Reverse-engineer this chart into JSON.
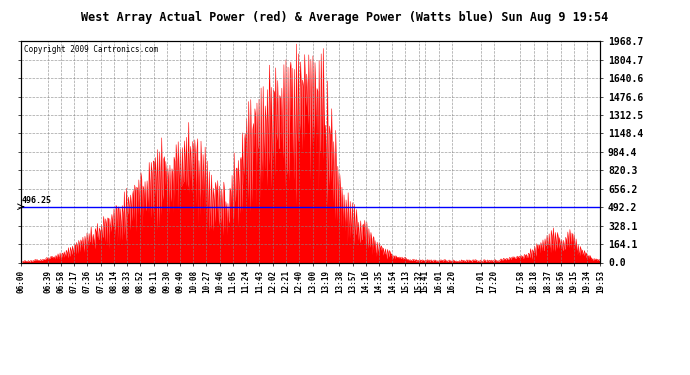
{
  "title": "West Array Actual Power (red) & Average Power (Watts blue) Sun Aug 9 19:54",
  "copyright": "Copyright 2009 Cartronics.com",
  "avg_power": 496.25,
  "y_max": 1968.7,
  "y_min": 0.0,
  "y_ticks": [
    0.0,
    164.1,
    328.1,
    492.2,
    656.2,
    820.3,
    984.4,
    1148.4,
    1312.5,
    1476.6,
    1640.6,
    1804.7,
    1968.7
  ],
  "background_color": "#ffffff",
  "fill_color": "#ff0000",
  "line_color": "#0000ff",
  "avg_label": "496.25",
  "x_ticks": [
    "06:00",
    "06:39",
    "06:58",
    "07:17",
    "07:36",
    "07:55",
    "08:14",
    "08:33",
    "08:52",
    "09:11",
    "09:30",
    "09:49",
    "10:08",
    "10:27",
    "10:46",
    "11:05",
    "11:24",
    "11:43",
    "12:02",
    "12:21",
    "12:40",
    "13:00",
    "13:19",
    "13:38",
    "13:57",
    "14:16",
    "14:35",
    "14:54",
    "15:13",
    "15:32",
    "15:41",
    "16:01",
    "16:20",
    "17:01",
    "17:20",
    "17:58",
    "18:18",
    "18:37",
    "18:56",
    "19:15",
    "19:34",
    "19:53"
  ]
}
